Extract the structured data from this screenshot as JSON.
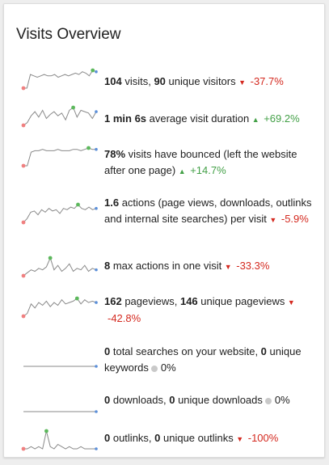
{
  "widget": {
    "title": "Visits Overview"
  },
  "colors": {
    "line": "#8a8a8a",
    "min_dot": "#f08080",
    "max_dot": "#5cb85c",
    "last_dot": "#5b8fd9",
    "negative": "#d4291f",
    "positive": "#43a047"
  },
  "rows": [
    {
      "id": "visits",
      "b1": "104",
      "t1": " visits, ",
      "b2": "90",
      "t2": " unique visitors",
      "trend": "down",
      "pct": "-37.7%",
      "series": [
        2,
        2,
        12,
        11,
        10,
        11,
        12,
        11,
        11,
        12,
        10,
        11,
        12,
        11,
        12,
        13,
        12,
        14,
        13,
        11,
        15,
        14
      ]
    },
    {
      "id": "duration",
      "b1": "1 min 6s",
      "t1": " average visit duration",
      "b2": "",
      "t2": "",
      "trend": "up",
      "pct": "+69.2%",
      "series": [
        2,
        4,
        9,
        12,
        8,
        13,
        7,
        10,
        12,
        9,
        11,
        6,
        13,
        15,
        8,
        13,
        12,
        11,
        7,
        12
      ]
    },
    {
      "id": "bounce",
      "b1": "78%",
      "t1": " visits have bounced (left the website after one page)",
      "b2": "",
      "t2": "",
      "trend": "up",
      "pct": "+14.7%",
      "series": [
        2,
        2,
        12,
        13,
        13,
        14,
        13,
        13,
        13,
        14,
        13,
        13,
        13,
        14,
        14,
        13,
        14,
        15,
        14,
        14
      ]
    },
    {
      "id": "actions",
      "b1": "1.6",
      "t1": " actions (page views, downloads, outlinks and internal site searches) per visit",
      "b2": "",
      "t2": "",
      "trend": "down",
      "pct": "-5.9%",
      "series": [
        2,
        5,
        10,
        11,
        8,
        12,
        10,
        13,
        11,
        12,
        9,
        13,
        12,
        14,
        13,
        16,
        13,
        12,
        14,
        12,
        13
      ]
    },
    {
      "id": "max-actions",
      "b1": "8",
      "t1": " max actions in one visit",
      "b2": "",
      "t2": "",
      "trend": "down",
      "pct": "-33.3%",
      "series": [
        2,
        4,
        6,
        5,
        7,
        6,
        8,
        14,
        6,
        9,
        5,
        7,
        10,
        5,
        7,
        6,
        9,
        5,
        7,
        6
      ]
    },
    {
      "id": "pageviews",
      "b1": "162",
      "t1": " pageviews, ",
      "b2": "146",
      "t2": " unique pageviews",
      "trend": "down",
      "pct": "-42.8%",
      "series": [
        2,
        4,
        11,
        8,
        12,
        10,
        13,
        9,
        12,
        10,
        14,
        11,
        12,
        13,
        15,
        11,
        14,
        12,
        13,
        12
      ]
    },
    {
      "id": "searches",
      "b1": "0",
      "t1": " total searches on your website, ",
      "b2": "0",
      "t2": " unique keywords",
      "trend": "flat",
      "pct": "0%",
      "series": [
        0,
        0,
        0,
        0,
        0,
        0,
        0,
        0,
        0,
        0,
        0,
        0,
        0,
        0,
        0,
        0,
        0,
        0,
        0,
        0
      ]
    },
    {
      "id": "downloads",
      "b1": "0",
      "t1": " downloads, ",
      "b2": "0",
      "t2": " unique downloads",
      "trend": "flat",
      "pct": "0%",
      "series": [
        0,
        0,
        0,
        0,
        0,
        0,
        0,
        0,
        0,
        0,
        0,
        0,
        0,
        0,
        0,
        0,
        0,
        0,
        0,
        0
      ]
    },
    {
      "id": "outlinks",
      "b1": "0",
      "t1": " outlinks, ",
      "b2": "0",
      "t2": " unique outlinks",
      "trend": "down",
      "pct": "-100%",
      "series": [
        0,
        0,
        1,
        0,
        1,
        0,
        8,
        1,
        0,
        2,
        1,
        0,
        1,
        0,
        0,
        1,
        0,
        0,
        0,
        0
      ]
    }
  ]
}
